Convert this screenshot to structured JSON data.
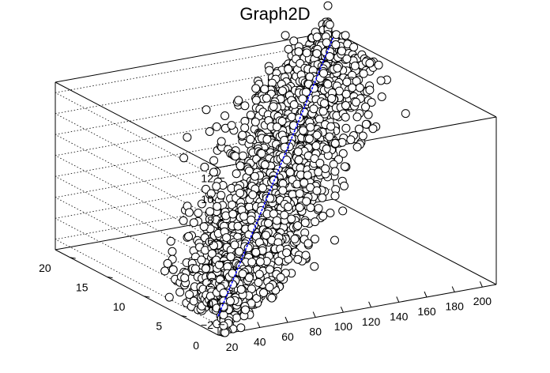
{
  "chart_data": {
    "type": "scatter",
    "title": "Graph2D",
    "projection": "3d",
    "grid": true,
    "legend": "none",
    "x_axis": {
      "range": [
        10,
        210
      ],
      "ticks": [
        20,
        40,
        60,
        80,
        100,
        120,
        140,
        160,
        180,
        200
      ],
      "tick_labels": [
        "20",
        "40",
        "60",
        "80",
        "100",
        "120",
        "140",
        "160",
        "180",
        "200"
      ]
    },
    "y_axis": {
      "range": [
        0,
        22
      ],
      "ticks": [
        0,
        5,
        10,
        15,
        20
      ],
      "tick_labels": [
        "0",
        "5",
        "10",
        "15",
        "20"
      ]
    },
    "z_axis": {
      "range": [
        -3,
        13
      ],
      "ticks": [
        -2,
        0,
        2,
        4,
        6,
        8,
        10,
        12
      ],
      "tick_labels": [
        "−2",
        "0",
        "2",
        "4",
        "6",
        "8",
        "10",
        "12"
      ]
    },
    "fit_line": {
      "color": "#0000ff",
      "from": {
        "x": 10,
        "y": 0,
        "z": -1.2
      },
      "to": {
        "x": 210,
        "y": 22,
        "z": 12.5
      }
    },
    "series": [
      {
        "marker": "open-circle",
        "point_fill": "#ffffff",
        "point_stroke": "#000000",
        "count": 1900,
        "x_range": [
          10,
          210
        ],
        "y_range": [
          0,
          22
        ],
        "z_trend": {
          "intercept": -1.2,
          "slope": 0.0685
        },
        "z_spread": 1.0
      }
    ]
  }
}
